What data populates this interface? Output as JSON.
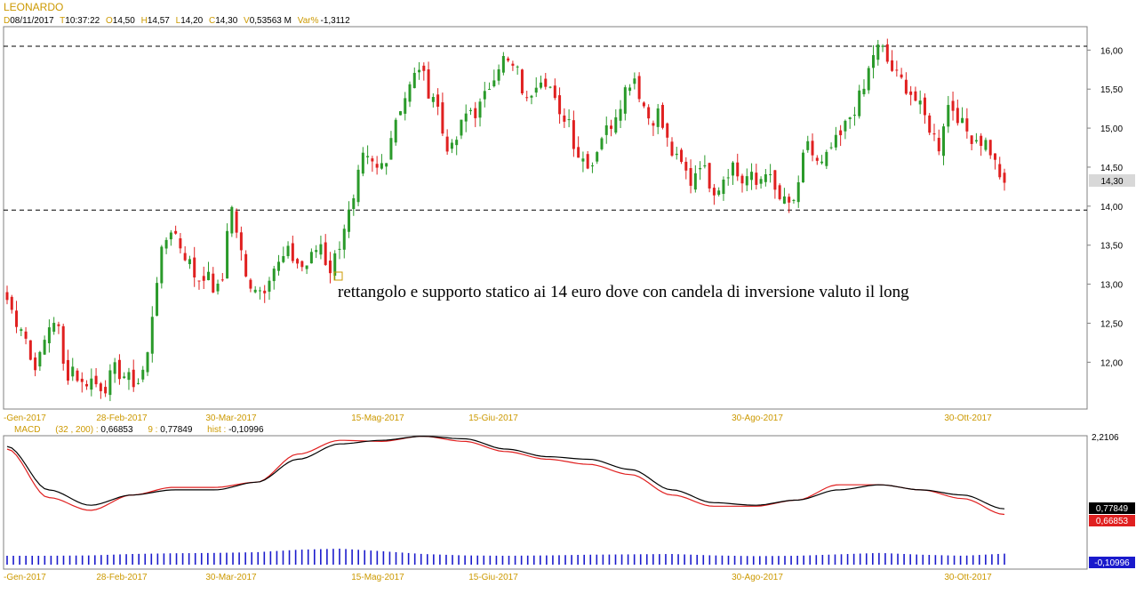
{
  "header": {
    "title": "LEONARDO",
    "fields": [
      {
        "key": "D",
        "value": "08/11/2017"
      },
      {
        "key": "T",
        "value": "10:37:22"
      },
      {
        "key": "O",
        "value": "14,50"
      },
      {
        "key": "H",
        "value": "14,57"
      },
      {
        "key": "L",
        "value": "14,20"
      },
      {
        "key": "C",
        "value": "14,30"
      },
      {
        "key": "V",
        "value": "0,53563 M"
      },
      {
        "key": "Var%",
        "value": "-1,3112"
      }
    ]
  },
  "colors": {
    "up": "#2a9a2a",
    "down": "#e02020",
    "macd_line": "#000000",
    "signal_line": "#e02020",
    "histogram": "#1a1acc",
    "frame": "#808080",
    "header_keys": "#cc9900"
  },
  "price_badge": "14,30",
  "annotation": "rettangolo e supporto statico ai 14 euro dove con candela di inversione valuto il long",
  "macd_header": {
    "label": "MACD",
    "params": "(32 , 200)",
    "macd_value": "0,66853",
    "signal_label": "9",
    "signal_value": "0,77849",
    "hist_label": "hist",
    "hist_value": "-0,10996"
  },
  "macd_badges": {
    "top": "2,2106",
    "black": "0,77849",
    "red": "0,66853",
    "blue": "-0,10996"
  },
  "chart_data": [
    {
      "type": "candlestick",
      "title": "LEONARDO",
      "x_tick_labels": [
        "-Gen-2017",
        "28-Feb-2017",
        "30-Mar-2017",
        "15-Mag-2017",
        "15-Giu-2017",
        "30-Ago-2017",
        "30-Ott-2017"
      ],
      "y_tick_labels": [
        "16,00",
        "15,50",
        "15,00",
        "14,50",
        "14,00",
        "13,50",
        "13,00",
        "12,50",
        "12,00"
      ],
      "ylim": [
        11.4,
        16.3
      ],
      "horizontal_levels": [
        16.05,
        13.95
      ],
      "last_close": 14.3,
      "grid": false,
      "ohlc_anchors": [
        [
          12.8,
          12.55
        ],
        [
          12.45,
          11.95
        ],
        [
          12.05,
          12.45
        ],
        [
          12.6,
          11.8
        ],
        [
          11.95,
          11.7
        ],
        [
          11.8,
          11.7
        ],
        [
          11.7,
          11.9
        ],
        [
          11.85,
          11.75
        ],
        [
          11.75,
          12.05
        ],
        [
          13.0,
          13.5
        ],
        [
          13.75,
          13.5
        ],
        [
          13.3,
          13.05
        ],
        [
          13.15,
          12.95
        ],
        [
          12.9,
          14.1
        ],
        [
          13.6,
          13.05
        ],
        [
          13.0,
          12.9
        ],
        [
          13.2,
          13.25
        ],
        [
          13.4,
          13.3
        ],
        [
          13.2,
          13.35
        ],
        [
          13.55,
          13.15
        ],
        [
          13.4,
          13.8
        ],
        [
          14.0,
          14.6
        ],
        [
          14.55,
          14.45
        ],
        [
          14.65,
          15.1
        ],
        [
          15.35,
          15.55
        ],
        [
          15.8,
          15.5
        ],
        [
          15.4,
          14.85
        ],
        [
          14.7,
          15.0
        ],
        [
          15.25,
          15.2
        ],
        [
          15.4,
          15.7
        ],
        [
          15.9,
          15.8
        ],
        [
          15.7,
          15.3
        ],
        [
          15.6,
          15.7
        ],
        [
          15.5,
          15.1
        ],
        [
          15.2,
          14.7
        ],
        [
          14.6,
          14.55
        ],
        [
          14.9,
          15.0
        ],
        [
          15.25,
          15.5
        ],
        [
          15.7,
          15.35
        ],
        [
          15.1,
          15.2
        ],
        [
          14.85,
          14.6
        ],
        [
          14.5,
          14.3
        ],
        [
          14.6,
          14.35
        ],
        [
          14.2,
          14.4
        ],
        [
          14.55,
          14.3
        ],
        [
          14.4,
          14.25
        ],
        [
          14.5,
          14.2
        ],
        [
          14.05,
          14.0
        ],
        [
          14.2,
          14.9
        ],
        [
          14.55,
          14.5
        ],
        [
          14.75,
          14.85
        ],
        [
          15.1,
          15.3
        ],
        [
          15.5,
          15.95
        ],
        [
          16.05,
          15.8
        ],
        [
          15.65,
          15.55
        ],
        [
          15.4,
          15.2
        ],
        [
          15.0,
          14.75
        ],
        [
          15.3,
          15.25
        ],
        [
          15.0,
          14.9
        ],
        [
          14.85,
          14.8
        ],
        [
          14.5,
          14.3
        ]
      ]
    },
    {
      "type": "line",
      "title": "MACD",
      "series": [
        {
          "name": "0,77849",
          "values": [
            2.0,
            1.15,
            0.85,
            1.05,
            1.15,
            1.15,
            1.3,
            1.75,
            2.05,
            2.12,
            2.2,
            2.15,
            1.95,
            1.8,
            1.75,
            1.55,
            1.15,
            0.9,
            0.85,
            0.95,
            1.15,
            1.25,
            1.15,
            1.05,
            0.78
          ]
        },
        {
          "name": "0,66853",
          "values": [
            1.95,
            1.0,
            0.75,
            1.05,
            1.2,
            1.2,
            1.3,
            1.85,
            2.12,
            2.1,
            2.2,
            2.1,
            1.9,
            1.75,
            1.65,
            1.45,
            1.05,
            0.83,
            0.83,
            0.95,
            1.25,
            1.25,
            1.15,
            0.98,
            0.67
          ]
        }
      ],
      "ylim": [
        -0.4,
        2.2106
      ]
    },
    {
      "type": "bar",
      "title": "hist",
      "values": [
        0.05,
        0.05,
        0.06,
        0.1,
        0.12,
        0.13,
        0.15,
        0.22,
        0.25,
        0.18,
        0.1,
        0.06,
        0.05,
        0.06,
        0.08,
        0.09,
        0.1,
        0.06,
        0.04,
        0.05,
        0.09,
        0.13,
        0.08,
        0.05,
        -0.10996
      ]
    }
  ]
}
